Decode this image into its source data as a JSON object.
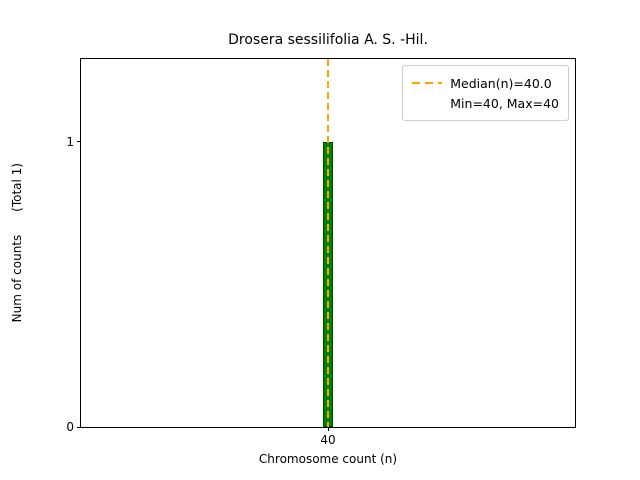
{
  "chart_data": {
    "type": "bar",
    "title": "Drosera sessilifolia A. S. -Hil.",
    "xlabel": "Chromosome count (n)",
    "ylabel": "Num of counts      (Total 1)",
    "x": [
      40
    ],
    "values": [
      1
    ],
    "bar_width": 0.02,
    "xlim": [
      39.5,
      40.5
    ],
    "ylim": [
      0,
      1.29
    ],
    "xticks": [
      40
    ],
    "yticks": [
      0,
      1
    ],
    "median": 40.0,
    "min": 40,
    "max": 40,
    "total_counts": 1,
    "legend": [
      "Median(n)=40.0",
      "Min=40, Max=40"
    ],
    "legend_position": "upper right",
    "grid": false,
    "colors": {
      "bar_fill": "#008000",
      "bar_edge": "#004d00",
      "median_line": "#FFA500"
    }
  }
}
